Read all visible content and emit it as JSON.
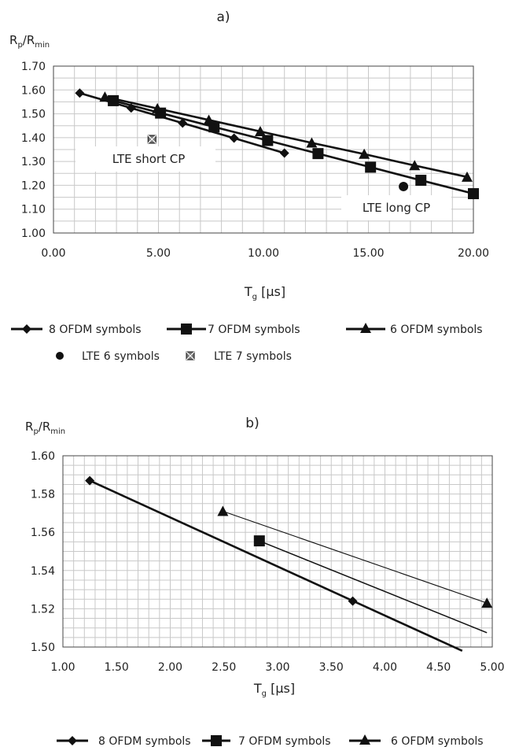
{
  "chart_data": [
    {
      "type": "line",
      "title": "a)",
      "ylabel": "R_p/R_min",
      "xlabel": "T_g [µs]",
      "xlim": [
        0,
        20
      ],
      "ylim": [
        1.0,
        1.7
      ],
      "x_ticks": [
        "0.00",
        "5.00",
        "10.00",
        "15.00",
        "20.00"
      ],
      "y_ticks": [
        "1.00",
        "1.10",
        "1.20",
        "1.30",
        "1.40",
        "1.50",
        "1.60",
        "1.70"
      ],
      "grid": true,
      "legend_position": "bottom",
      "series": [
        {
          "name": "8 OFDM symbols",
          "marker": "diamond",
          "x": [
            1.25,
            3.7,
            6.15,
            8.6,
            11.0
          ],
          "y": [
            1.587,
            1.524,
            1.461,
            1.398,
            1.335
          ]
        },
        {
          "name": "7 OFDM symbols",
          "marker": "square",
          "x": [
            2.85,
            5.1,
            7.65,
            10.2,
            12.6,
            15.1,
            17.5,
            20.0
          ],
          "y": [
            1.555,
            1.503,
            1.445,
            1.388,
            1.333,
            1.276,
            1.221,
            1.165
          ]
        },
        {
          "name": "6 OFDM symbols",
          "marker": "triangle",
          "x": [
            2.45,
            4.95,
            7.4,
            9.85,
            12.3,
            14.8,
            17.2,
            19.7
          ],
          "y": [
            1.571,
            1.522,
            1.474,
            1.426,
            1.378,
            1.331,
            1.283,
            1.235
          ]
        },
        {
          "name": "LTE 6 symbols",
          "marker": "circle",
          "line": false,
          "x": [
            16.67
          ],
          "y": [
            1.195
          ]
        },
        {
          "name": "LTE 7 symbols",
          "marker": "boxcross",
          "line": false,
          "x": [
            4.69
          ],
          "y": [
            1.393
          ]
        }
      ],
      "annotations": [
        "LTE short CP",
        "LTE long CP"
      ]
    },
    {
      "type": "line",
      "title": "b)",
      "ylabel": "R_p/R_min",
      "xlabel": "T_g [µs]",
      "xlim": [
        1.0,
        5.0
      ],
      "ylim": [
        1.5,
        1.6
      ],
      "x_ticks": [
        "1.00",
        "1.50",
        "2.00",
        "2.50",
        "3.00",
        "3.50",
        "4.00",
        "4.50",
        "5.00"
      ],
      "y_ticks": [
        "1.50",
        "1.52",
        "1.54",
        "1.56",
        "1.58",
        "1.60"
      ],
      "grid": true,
      "legend_position": "bottom",
      "series": [
        {
          "name": "8 OFDM symbols",
          "marker": "diamond",
          "x": [
            1.25,
            3.7
          ],
          "y": [
            1.587,
            1.524
          ],
          "line_x": [
            1.25,
            4.72
          ],
          "line_y": [
            1.587,
            1.498
          ],
          "stroke": 2.6
        },
        {
          "name": "7 OFDM symbols",
          "marker": "square",
          "x": [
            2.83
          ],
          "y": [
            1.5555
          ],
          "line_x": [
            2.83,
            4.95
          ],
          "line_y": [
            1.5555,
            1.5075
          ],
          "stroke": 1.5
        },
        {
          "name": "6 OFDM symbols",
          "marker": "triangle",
          "x": [
            2.49,
            4.95
          ],
          "y": [
            1.571,
            1.523
          ],
          "line_x": [
            2.49,
            4.95
          ],
          "line_y": [
            1.571,
            1.523
          ],
          "stroke": 1.1
        }
      ]
    }
  ]
}
